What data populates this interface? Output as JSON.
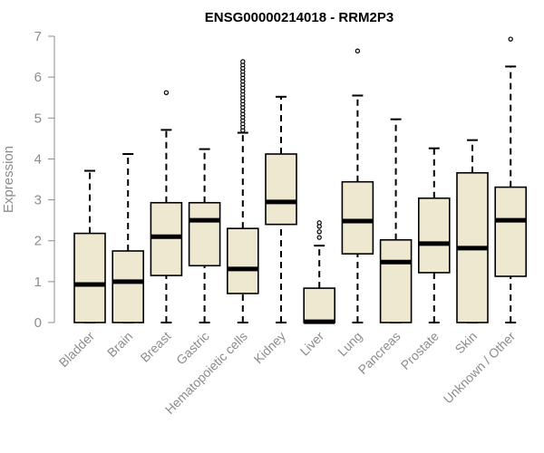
{
  "chart_data": {
    "type": "boxplot",
    "title": "ENSG00000214018 - RRM2P3",
    "xlabel": "",
    "ylabel": "Expression",
    "ylim": [
      0,
      7
    ],
    "yticks": [
      0,
      1,
      2,
      3,
      4,
      5,
      6,
      7
    ],
    "grid": false,
    "legend": "none",
    "colors": {
      "box_fill": "#efe8d0",
      "box_stroke": "#000000",
      "axis": "#8c8c8c",
      "title": "#000000"
    },
    "categories": [
      "Bladder",
      "Brain",
      "Breast",
      "Gastric",
      "Hematopoietic cells",
      "Kidney",
      "Liver",
      "Lung",
      "Pancreas",
      "Prostate",
      "Skin",
      "Unknown / Other"
    ],
    "boxes": [
      {
        "category": "Bladder",
        "whisker_low": 0,
        "q1": 0,
        "median": 0.93,
        "q3": 2.18,
        "whisker_high": 3.71,
        "outliers": []
      },
      {
        "category": "Brain",
        "whisker_low": 0,
        "q1": 0,
        "median": 1.0,
        "q3": 1.75,
        "whisker_high": 4.12,
        "outliers": []
      },
      {
        "category": "Breast",
        "whisker_low": 0,
        "q1": 1.15,
        "median": 2.1,
        "q3": 2.93,
        "whisker_high": 4.71,
        "outliers": [
          5.62
        ]
      },
      {
        "category": "Gastric",
        "whisker_low": 0,
        "q1": 1.39,
        "median": 2.5,
        "q3": 2.93,
        "whisker_high": 4.24,
        "outliers": []
      },
      {
        "category": "Hematopoietic cells",
        "whisker_low": 0,
        "q1": 0.71,
        "median": 1.31,
        "q3": 2.3,
        "whisker_high": 4.64,
        "outliers": [
          4.7,
          4.78,
          4.86,
          4.94,
          5.02,
          5.1,
          5.18,
          5.26,
          5.34,
          5.42,
          5.5,
          5.58,
          5.66,
          5.74,
          5.82,
          5.9,
          5.98,
          6.06,
          6.14,
          6.22,
          6.3,
          6.38
        ]
      },
      {
        "category": "Kidney",
        "whisker_low": 0,
        "q1": 2.4,
        "median": 2.95,
        "q3": 4.12,
        "whisker_high": 5.52,
        "outliers": []
      },
      {
        "category": "Liver",
        "whisker_low": 0,
        "q1": 0,
        "median": 0.02,
        "q3": 0.84,
        "whisker_high": 1.88,
        "outliers": [
          2.08,
          2.22,
          2.35,
          2.44
        ]
      },
      {
        "category": "Lung",
        "whisker_low": 0,
        "q1": 1.68,
        "median": 2.48,
        "q3": 3.44,
        "whisker_high": 5.55,
        "outliers": [
          6.64
        ]
      },
      {
        "category": "Pancreas",
        "whisker_low": 0,
        "q1": 0,
        "median": 1.48,
        "q3": 2.02,
        "whisker_high": 4.97,
        "outliers": []
      },
      {
        "category": "Prostate",
        "whisker_low": 0,
        "q1": 1.22,
        "median": 1.93,
        "q3": 3.04,
        "whisker_high": 4.26,
        "outliers": []
      },
      {
        "category": "Skin",
        "whisker_low": 0,
        "q1": 0,
        "median": 1.82,
        "q3": 3.66,
        "whisker_high": 4.46,
        "outliers": []
      },
      {
        "category": "Unknown / Other",
        "whisker_low": 0,
        "q1": 1.13,
        "median": 2.5,
        "q3": 3.31,
        "whisker_high": 6.26,
        "outliers": [
          6.93
        ]
      }
    ]
  }
}
